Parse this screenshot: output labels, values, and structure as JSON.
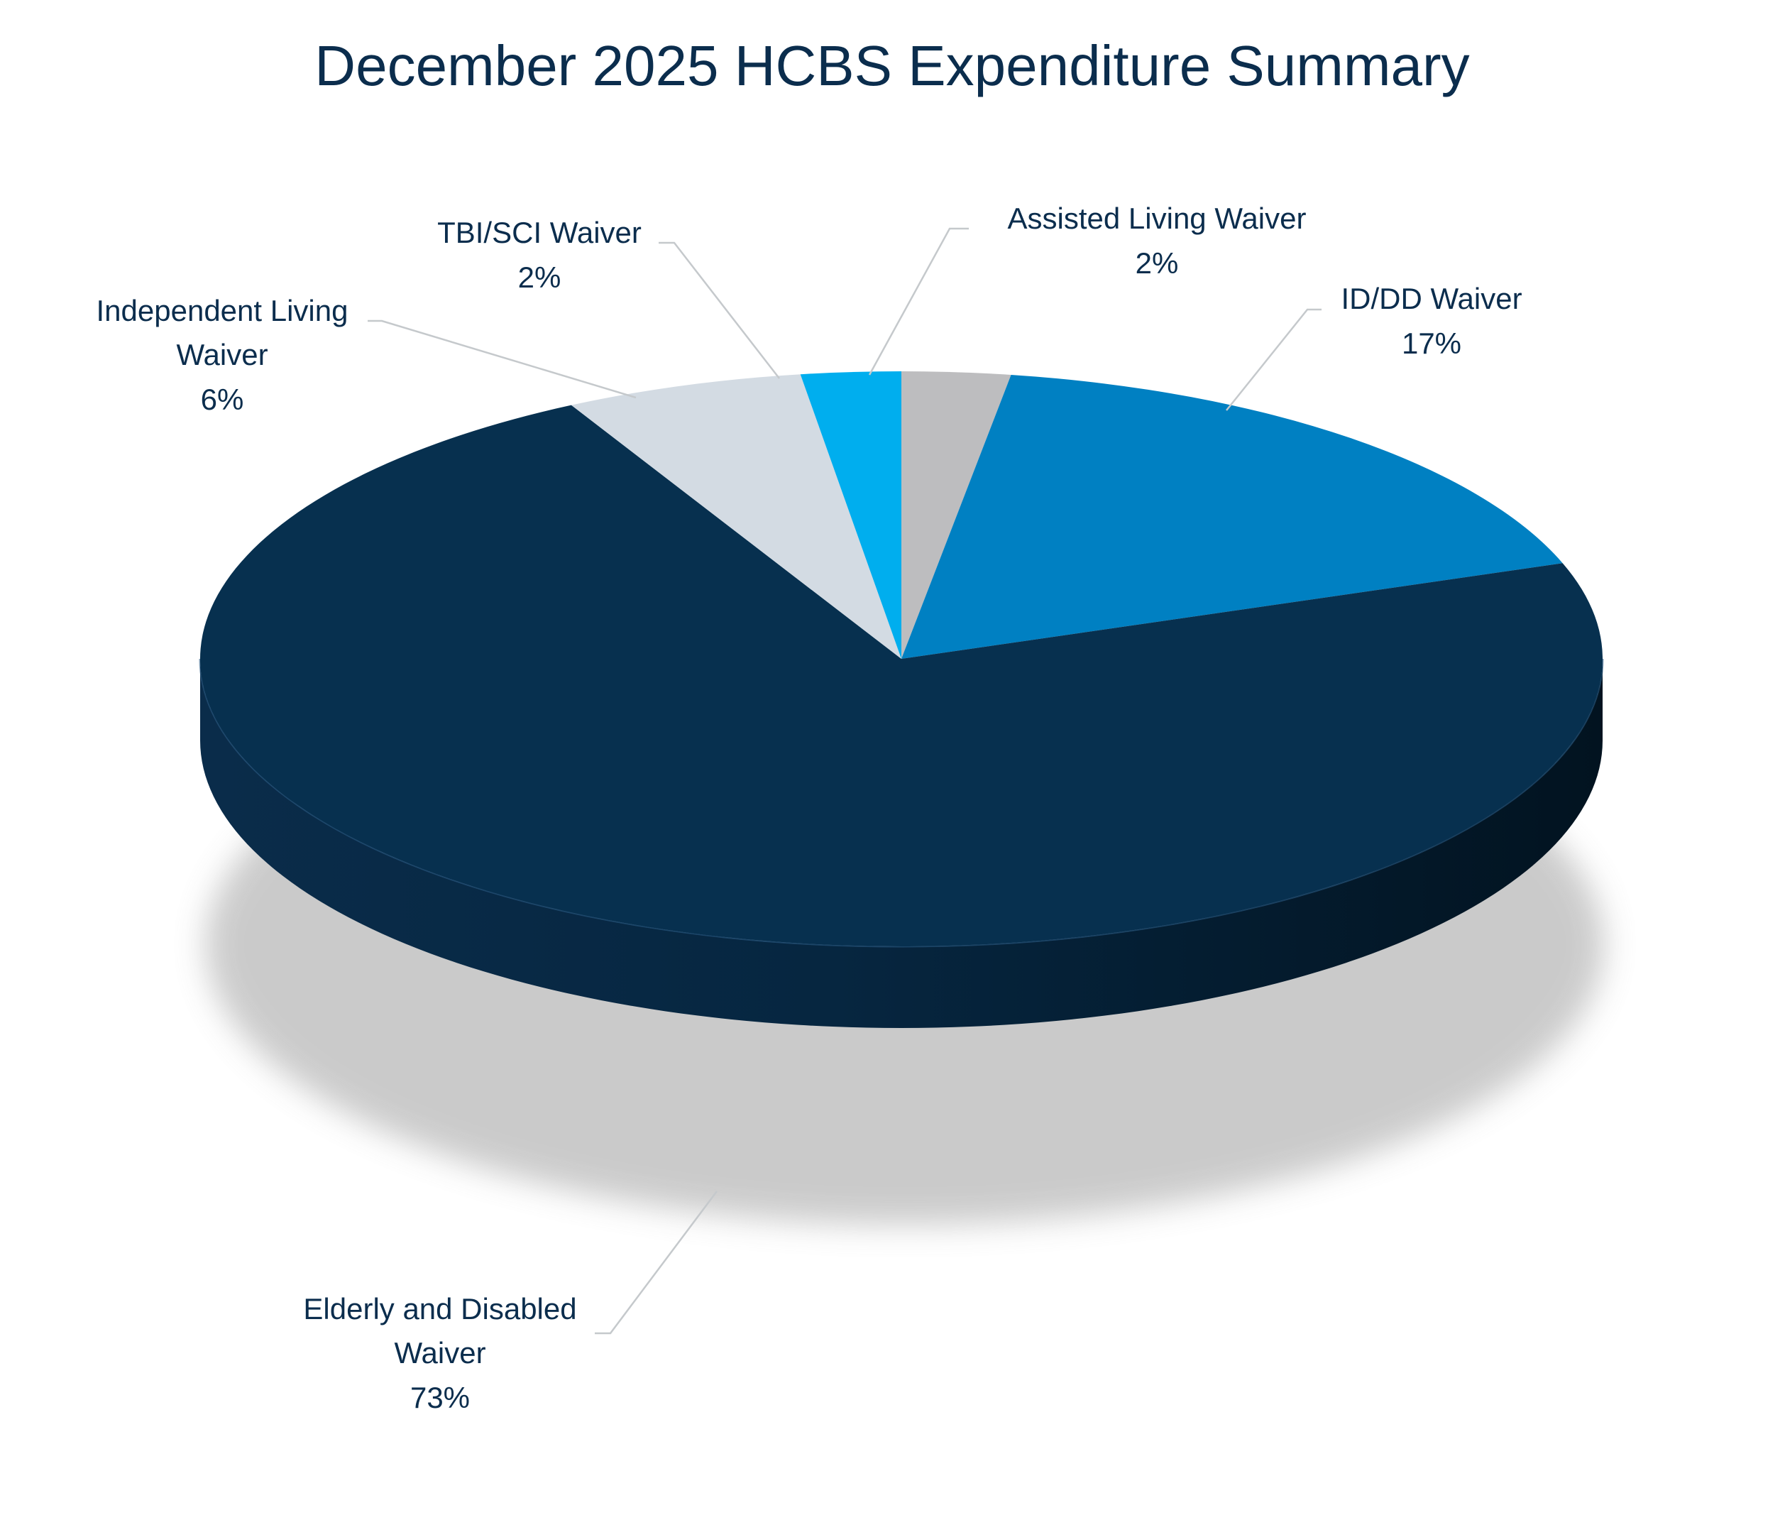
{
  "chart_data": {
    "type": "pie",
    "title": "December 2025 HCBS Expenditure Summary",
    "labels_shown": "category name and percentage",
    "style": "3D pie with shadow",
    "slices": [
      {
        "label": "Assisted Living Waiver",
        "percent_label": "2%",
        "value": 2.5,
        "color": "#bdbdbf"
      },
      {
        "label": "ID/DD Waiver",
        "percent_label": "17%",
        "value": 17.1,
        "color": "#0080c2"
      },
      {
        "label": "Elderly and Disabled Waiver",
        "percent_label": "73%",
        "value": 72.6,
        "color": "#07304f"
      },
      {
        "label": "Independent Living Waiver",
        "percent_label": "6%",
        "value": 5.5,
        "color": "#d3dbe3"
      },
      {
        "label": "TBI/SCI Waiver",
        "percent_label": "2%",
        "value": 2.3,
        "color": "#00aeee"
      }
    ],
    "colors": {
      "text": "#0b2d4d",
      "leader_line": "#c5c9cc",
      "side_dark": "#021320"
    }
  }
}
